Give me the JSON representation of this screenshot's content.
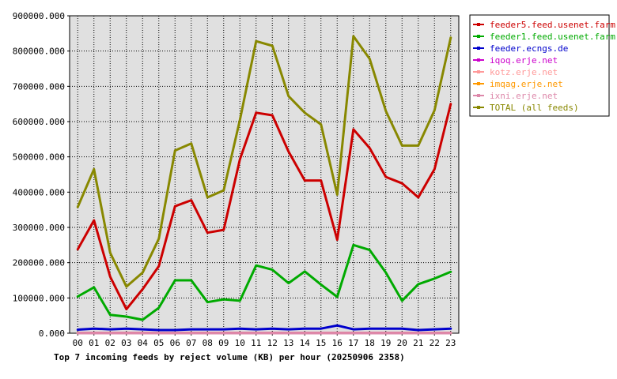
{
  "chart_data": {
    "type": "line",
    "title": "Top 7 incoming feeds by reject volume (KB) per hour (20250906 2358)",
    "categories": [
      "00",
      "01",
      "02",
      "03",
      "04",
      "05",
      "06",
      "07",
      "08",
      "09",
      "10",
      "11",
      "12",
      "13",
      "14",
      "15",
      "16",
      "17",
      "18",
      "19",
      "20",
      "21",
      "22",
      "23"
    ],
    "ylim": [
      0,
      900000
    ],
    "yticks": [
      0,
      100000,
      200000,
      300000,
      400000,
      500000,
      600000,
      700000,
      800000,
      900000
    ],
    "ytick_labels": [
      "0.000",
      "100000.000",
      "200000.000",
      "300000.000",
      "400000.000",
      "500000.000",
      "600000.000",
      "700000.000",
      "800000.000",
      "900000.000"
    ],
    "grid": true,
    "legend_position": "top-right",
    "series": [
      {
        "name": "feeder5.feed.usenet.farm",
        "color": "#cc0000",
        "values": [
          238000,
          320000,
          160000,
          68000,
          125000,
          190000,
          360000,
          377000,
          285000,
          293000,
          493000,
          625000,
          618000,
          515000,
          433000,
          433000,
          265000,
          578000,
          525000,
          443000,
          425000,
          385000,
          465000,
          650000
        ]
      },
      {
        "name": "feeder1.feed.usenet.farm",
        "color": "#00aa00",
        "values": [
          104000,
          130000,
          52000,
          47000,
          38000,
          72000,
          150000,
          150000,
          88000,
          96000,
          92000,
          192000,
          180000,
          142000,
          175000,
          138000,
          103000,
          250000,
          236000,
          172000,
          92000,
          139000,
          155000,
          174000
        ]
      },
      {
        "name": "feeder.ecngs.de",
        "color": "#0000cc",
        "values": [
          10000,
          13000,
          11000,
          13000,
          11000,
          9000,
          9000,
          11000,
          11000,
          11000,
          13000,
          11000,
          13000,
          11000,
          13000,
          13000,
          22000,
          11000,
          13000,
          13000,
          13000,
          9000,
          11000,
          13000
        ]
      },
      {
        "name": "iqoq.erje.net",
        "color": "#cc00cc",
        "values": [
          500,
          500,
          500,
          500,
          500,
          500,
          500,
          500,
          500,
          500,
          500,
          500,
          500,
          500,
          500,
          500,
          500,
          500,
          500,
          500,
          500,
          500,
          500,
          500
        ]
      },
      {
        "name": "kotz.erje.net",
        "color": "#ff9999",
        "values": [
          300,
          300,
          300,
          300,
          300,
          300,
          300,
          300,
          300,
          300,
          300,
          300,
          300,
          300,
          300,
          300,
          300,
          300,
          300,
          300,
          300,
          300,
          300,
          300
        ]
      },
      {
        "name": "imqag.erje.net",
        "color": "#ff9900",
        "values": [
          200,
          200,
          200,
          200,
          200,
          200,
          200,
          200,
          200,
          200,
          200,
          200,
          200,
          200,
          200,
          200,
          200,
          200,
          200,
          200,
          200,
          200,
          200,
          200
        ]
      },
      {
        "name": "ixni.erje.net",
        "color": "#dd88aa",
        "values": [
          100,
          100,
          100,
          100,
          100,
          100,
          100,
          100,
          100,
          100,
          100,
          100,
          100,
          100,
          100,
          100,
          100,
          100,
          100,
          100,
          100,
          100,
          100,
          100
        ]
      },
      {
        "name": "TOTAL (all feeds)",
        "color": "#888800",
        "values": [
          358000,
          465000,
          228000,
          132000,
          172000,
          268000,
          518000,
          538000,
          385000,
          405000,
          605000,
          828000,
          815000,
          672000,
          625000,
          592000,
          393000,
          842000,
          778000,
          630000,
          532000,
          532000,
          632000,
          838000
        ]
      }
    ]
  }
}
